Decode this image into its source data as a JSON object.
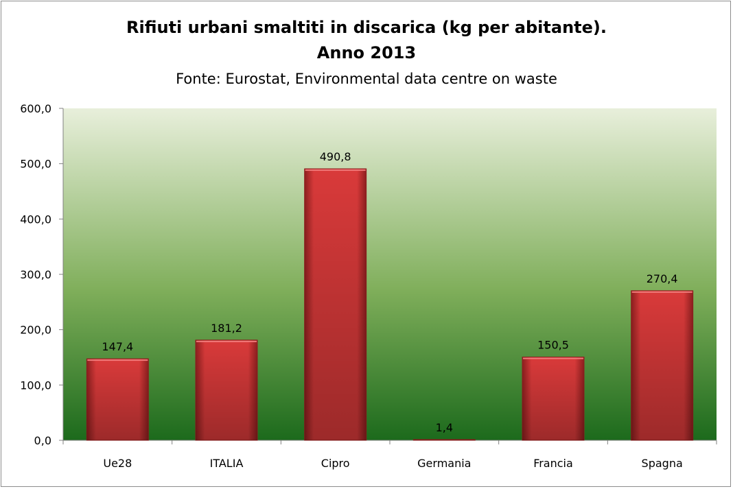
{
  "chart_data": {
    "type": "bar",
    "title": "Rifiuti urbani smaltiti in discarica (kg per abitante).",
    "title_line2": "Anno 2013",
    "subtitle": "Fonte: Eurostat, Environmental data centre on waste",
    "categories": [
      "Ue28",
      "ITALIA",
      "Cipro",
      "Germania",
      "Francia",
      "Spagna"
    ],
    "values": [
      147.4,
      181.2,
      490.8,
      1.4,
      150.5,
      270.4
    ],
    "data_labels": [
      "147,4",
      "181,2",
      "490,8",
      "1,4",
      "150,5",
      "270,4"
    ],
    "y_ticks": [
      "0,0",
      "100,0",
      "200,0",
      "300,0",
      "400,0",
      "500,0",
      "600,0"
    ],
    "ylim": [
      0,
      600
    ],
    "grid": false,
    "legend": "none",
    "colors": {
      "bar": "#d93a3a",
      "bar_dark": "#8e1f1f",
      "plot_top": "#e8efdb",
      "plot_bottom": "#1c6a1c"
    }
  }
}
